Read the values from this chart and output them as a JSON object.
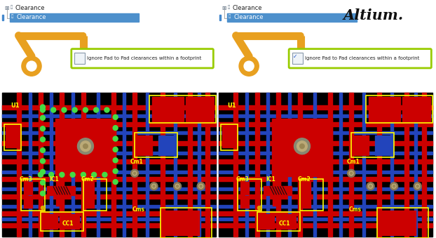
{
  "white": "#ffffff",
  "pcb_bg": "#000000",
  "red": "#cc0000",
  "blue": "#2244bb",
  "yellow": "#ffff00",
  "bright_green": "#44dd44",
  "gold": "#ddaa00",
  "gold2": "#ccaa55",
  "orange_arrow": "#e8a020",
  "highlight_blue": "#4488cc",
  "lime_green": "#99cc00",
  "gray_blue": "#9ab4c8",
  "checkbox_label": "Ignore Pad to Pad clearances within a footprint",
  "altium_text": "Altium.",
  "clearance_text": "Clearance",
  "tree_icon_color": "#556677",
  "selected_blue": "#4d90cc",
  "via_white": "#ddddcc",
  "dark_red": "#aa0000",
  "bright_red": "#ee1111"
}
